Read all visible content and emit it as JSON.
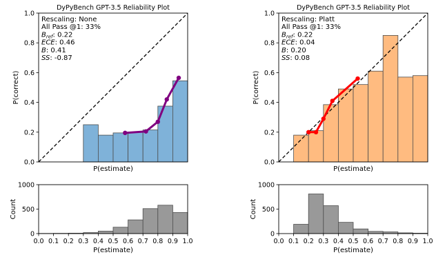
{
  "chart_data": [
    {
      "type": "bar",
      "panel": "reliability",
      "title": "DyPyBench GPT-3.5 Reliability Plot",
      "xlabel": "P(estimate)",
      "ylabel": "P(correct)",
      "xlim": [
        0,
        1
      ],
      "ylim": [
        0,
        1
      ],
      "yticks": [
        "0.0",
        "0.2",
        "0.4",
        "0.6",
        "0.8",
        "1.0"
      ],
      "bin_color": "#7fb2d9",
      "curve_color": "#800080",
      "bins": [
        {
          "x0": 0.3,
          "x1": 0.4,
          "value": 0.25
        },
        {
          "x0": 0.4,
          "x1": 0.5,
          "value": 0.18
        },
        {
          "x0": 0.5,
          "x1": 0.6,
          "value": 0.195
        },
        {
          "x0": 0.6,
          "x1": 0.7,
          "value": 0.2
        },
        {
          "x0": 0.7,
          "x1": 0.8,
          "value": 0.215
        },
        {
          "x0": 0.8,
          "x1": 0.9,
          "value": 0.375
        },
        {
          "x0": 0.9,
          "x1": 1.0,
          "value": 0.545
        }
      ],
      "curve": [
        [
          0.58,
          0.195
        ],
        [
          0.72,
          0.205
        ],
        [
          0.8,
          0.27
        ],
        [
          0.86,
          0.42
        ],
        [
          0.94,
          0.565
        ]
      ],
      "annotations": [
        {
          "label": "Rescaling: None",
          "italic": false
        },
        {
          "label": "All Pass @1: 33%",
          "italic": false
        },
        {
          "label": "B",
          "sub": "ref",
          "value": ": 0.22",
          "italic": true
        },
        {
          "label": "ECE",
          "value": ": 0.46",
          "italic": true
        },
        {
          "label": "B",
          "value": ": 0.41",
          "italic": true
        },
        {
          "label": "SS",
          "value": ": -0.87",
          "italic": true
        }
      ]
    },
    {
      "type": "bar",
      "panel": "reliability",
      "title": "DyPyBench GPT-3.5 Reliability Plot",
      "xlabel": "P(estimate)",
      "ylabel": "P(correct)",
      "xlim": [
        0,
        1
      ],
      "ylim": [
        0,
        1
      ],
      "yticks": [
        "0.0",
        "0.2",
        "0.4",
        "0.6",
        "0.8",
        "1.0"
      ],
      "bin_color": "#ffbb80",
      "curve_color": "#ff0000",
      "bins": [
        {
          "x0": 0.1,
          "x1": 0.2,
          "value": 0.18
        },
        {
          "x0": 0.2,
          "x1": 0.3,
          "value": 0.21
        },
        {
          "x0": 0.3,
          "x1": 0.4,
          "value": 0.385
        },
        {
          "x0": 0.4,
          "x1": 0.5,
          "value": 0.49
        },
        {
          "x0": 0.5,
          "x1": 0.6,
          "value": 0.52
        },
        {
          "x0": 0.6,
          "x1": 0.7,
          "value": 0.61
        },
        {
          "x0": 0.7,
          "x1": 0.8,
          "value": 0.85
        },
        {
          "x0": 0.8,
          "x1": 0.9,
          "value": 0.57
        },
        {
          "x0": 0.9,
          "x1": 1.0,
          "value": 0.58
        }
      ],
      "curve": [
        [
          0.2,
          0.2
        ],
        [
          0.25,
          0.2
        ],
        [
          0.3,
          0.29
        ],
        [
          0.36,
          0.41
        ],
        [
          0.53,
          0.56
        ]
      ],
      "annotations": [
        {
          "label": "Rescaling: Platt",
          "italic": false
        },
        {
          "label": "All Pass @1: 33%",
          "italic": false
        },
        {
          "label": "B",
          "sub": "ref",
          "value": ": 0.22",
          "italic": true
        },
        {
          "label": "ECE",
          "value": ": 0.04",
          "italic": true
        },
        {
          "label": "B",
          "value": ": 0.20",
          "italic": true
        },
        {
          "label": "SS",
          "value": ": 0.08",
          "italic": true
        }
      ]
    },
    {
      "type": "bar",
      "panel": "histogram",
      "xlabel": "P(estimate)",
      "ylabel": "Count",
      "xlim": [
        0,
        1
      ],
      "ylim": [
        0,
        1000
      ],
      "xticks": [
        "0.0",
        "0.1",
        "0.2",
        "0.3",
        "0.4",
        "0.5",
        "0.6",
        "0.7",
        "0.8",
        "0.9",
        "1.0"
      ],
      "yticks": [
        "0",
        "500",
        "1000"
      ],
      "bar_color": "#999999",
      "bins": [
        {
          "x0": 0.0,
          "x1": 0.1,
          "value": 3
        },
        {
          "x0": 0.1,
          "x1": 0.2,
          "value": 5
        },
        {
          "x0": 0.2,
          "x1": 0.3,
          "value": 8
        },
        {
          "x0": 0.3,
          "x1": 0.4,
          "value": 20
        },
        {
          "x0": 0.4,
          "x1": 0.5,
          "value": 50
        },
        {
          "x0": 0.5,
          "x1": 0.6,
          "value": 130
        },
        {
          "x0": 0.6,
          "x1": 0.7,
          "value": 280
        },
        {
          "x0": 0.7,
          "x1": 0.8,
          "value": 510
        },
        {
          "x0": 0.8,
          "x1": 0.9,
          "value": 580
        },
        {
          "x0": 0.9,
          "x1": 1.0,
          "value": 430
        }
      ]
    },
    {
      "type": "bar",
      "panel": "histogram",
      "xlabel": "P(estimate)",
      "ylabel": "Count",
      "xlim": [
        0,
        1
      ],
      "ylim": [
        0,
        1000
      ],
      "xticks": [
        "0.0",
        "0.1",
        "0.2",
        "0.3",
        "0.4",
        "0.5",
        "0.6",
        "0.7",
        "0.8",
        "0.9",
        "1.0"
      ],
      "yticks": [
        "0",
        "500",
        "1000"
      ],
      "bar_color": "#999999",
      "bins": [
        {
          "x0": 0.1,
          "x1": 0.2,
          "value": 190
        },
        {
          "x0": 0.2,
          "x1": 0.3,
          "value": 810
        },
        {
          "x0": 0.3,
          "x1": 0.4,
          "value": 570
        },
        {
          "x0": 0.4,
          "x1": 0.5,
          "value": 230
        },
        {
          "x0": 0.5,
          "x1": 0.6,
          "value": 95
        },
        {
          "x0": 0.6,
          "x1": 0.7,
          "value": 45
        },
        {
          "x0": 0.7,
          "x1": 0.8,
          "value": 35
        },
        {
          "x0": 0.8,
          "x1": 0.9,
          "value": 15
        },
        {
          "x0": 0.9,
          "x1": 1.0,
          "value": 8
        }
      ]
    }
  ]
}
